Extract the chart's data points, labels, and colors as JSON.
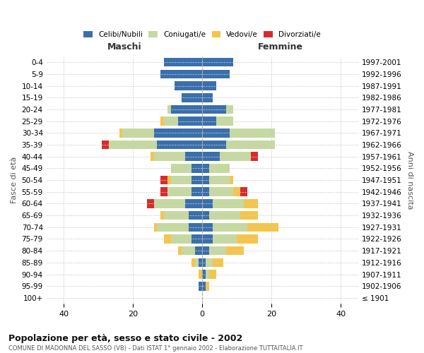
{
  "age_groups": [
    "100+",
    "95-99",
    "90-94",
    "85-89",
    "80-84",
    "75-79",
    "70-74",
    "65-69",
    "60-64",
    "55-59",
    "50-54",
    "45-49",
    "40-44",
    "35-39",
    "30-34",
    "25-29",
    "20-24",
    "15-19",
    "10-14",
    "5-9",
    "0-4"
  ],
  "birth_years": [
    "≤ 1901",
    "1902-1906",
    "1907-1911",
    "1912-1916",
    "1917-1921",
    "1922-1926",
    "1927-1931",
    "1932-1936",
    "1937-1941",
    "1942-1946",
    "1947-1951",
    "1952-1956",
    "1957-1961",
    "1962-1966",
    "1967-1971",
    "1972-1976",
    "1977-1981",
    "1982-1986",
    "1987-1991",
    "1992-1996",
    "1997-2001"
  ],
  "male": {
    "celibi": [
      0,
      1,
      0,
      1,
      2,
      3,
      4,
      4,
      5,
      3,
      3,
      3,
      5,
      13,
      14,
      7,
      9,
      6,
      8,
      12,
      11
    ],
    "coniugati": [
      0,
      0,
      0,
      1,
      4,
      6,
      9,
      7,
      9,
      7,
      6,
      6,
      9,
      14,
      9,
      4,
      1,
      0,
      0,
      0,
      0
    ],
    "vedovi": [
      0,
      0,
      1,
      1,
      1,
      2,
      1,
      1,
      0,
      0,
      1,
      0,
      1,
      0,
      1,
      1,
      0,
      0,
      0,
      0,
      0
    ],
    "divorziati": [
      0,
      0,
      0,
      0,
      0,
      0,
      0,
      0,
      2,
      2,
      2,
      0,
      0,
      2,
      0,
      0,
      0,
      0,
      0,
      0,
      0
    ]
  },
  "female": {
    "nubili": [
      0,
      1,
      1,
      1,
      2,
      3,
      3,
      2,
      3,
      2,
      2,
      2,
      5,
      7,
      8,
      4,
      7,
      3,
      4,
      8,
      9
    ],
    "coniugate": [
      0,
      0,
      1,
      2,
      5,
      7,
      10,
      9,
      9,
      7,
      6,
      6,
      9,
      14,
      13,
      5,
      2,
      0,
      0,
      0,
      0
    ],
    "vedove": [
      0,
      1,
      2,
      3,
      5,
      6,
      9,
      5,
      4,
      2,
      1,
      0,
      0,
      0,
      0,
      0,
      0,
      0,
      0,
      0,
      0
    ],
    "divorziate": [
      0,
      0,
      0,
      0,
      0,
      0,
      0,
      0,
      0,
      2,
      0,
      0,
      2,
      0,
      0,
      0,
      0,
      0,
      0,
      0,
      0
    ]
  },
  "colors": {
    "celibi": "#3a6fad",
    "coniugati": "#c5d9a0",
    "vedovi": "#f5c54a",
    "divorziati": "#d92b2b"
  },
  "xlim": 45,
  "title": "Popolazione per età, sesso e stato civile - 2002",
  "subtitle": "COMUNE DI MADONNA DEL SASSO (VB) - Dati ISTAT 1° gennaio 2002 - Elaborazione TUTTAITALIA.IT",
  "ylabel_left": "Fasce di età",
  "ylabel_right": "Anni di nascita",
  "xlabel_left": "Maschi",
  "xlabel_right": "Femmine",
  "bg_color": "#ffffff",
  "grid_color": "#cccccc"
}
